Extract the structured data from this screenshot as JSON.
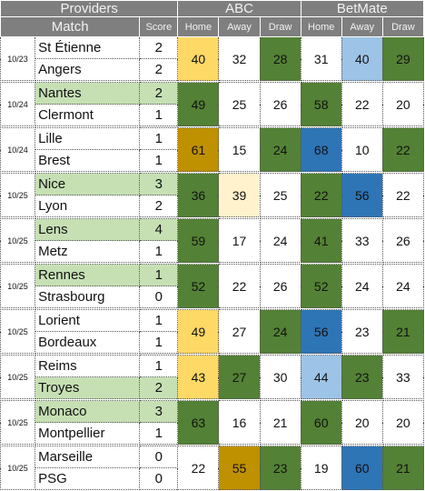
{
  "header": {
    "providers": "Providers",
    "abc": "ABC",
    "betmate": "BetMate",
    "match": "Match",
    "score": "Score",
    "home": "Home",
    "away": "Away",
    "draw": "Draw"
  },
  "colors": {
    "green": "#538135",
    "yellow": "#ffd966",
    "gold": "#bf9000",
    "cream": "#fff2cc",
    "light_blue": "#9dc3e6",
    "blue": "#2e75b6",
    "winner_highlight": "#c6e0b4"
  },
  "matches": [
    {
      "date": "10/23",
      "home": "St Étienne",
      "away": "Angers",
      "hs": "2",
      "as": "2",
      "winner": "",
      "abc": [
        "40",
        "32",
        "28"
      ],
      "bm": [
        "31",
        "40",
        "29"
      ],
      "abc_c": [
        "yellow",
        "",
        "green"
      ],
      "bm_c": [
        "",
        "lblue",
        "green"
      ]
    },
    {
      "date": "10/24",
      "home": "Nantes",
      "away": "Clermont",
      "hs": "2",
      "as": "1",
      "winner": "home",
      "abc": [
        "49",
        "25",
        "26"
      ],
      "bm": [
        "58",
        "22",
        "20"
      ],
      "abc_c": [
        "green",
        "",
        ""
      ],
      "bm_c": [
        "green",
        "",
        ""
      ]
    },
    {
      "date": "10/24",
      "home": "Lille",
      "away": "Brest",
      "hs": "1",
      "as": "1",
      "winner": "",
      "abc": [
        "61",
        "15",
        "24"
      ],
      "bm": [
        "68",
        "10",
        "22"
      ],
      "abc_c": [
        "gold",
        "",
        "green"
      ],
      "bm_c": [
        "blue",
        "",
        "green"
      ]
    },
    {
      "date": "10/25",
      "home": "Nice",
      "away": "Lyon",
      "hs": "3",
      "as": "2",
      "winner": "home",
      "abc": [
        "36",
        "39",
        "25"
      ],
      "bm": [
        "22",
        "56",
        "22"
      ],
      "abc_c": [
        "green",
        "cream",
        ""
      ],
      "bm_c": [
        "green",
        "blue",
        ""
      ]
    },
    {
      "date": "10/25",
      "home": "Lens",
      "away": "Metz",
      "hs": "4",
      "as": "1",
      "winner": "home",
      "abc": [
        "59",
        "17",
        "24"
      ],
      "bm": [
        "41",
        "33",
        "26"
      ],
      "abc_c": [
        "green",
        "",
        ""
      ],
      "bm_c": [
        "green",
        "",
        ""
      ]
    },
    {
      "date": "10/25",
      "home": "Rennes",
      "away": "Strasbourg",
      "hs": "1",
      "as": "0",
      "winner": "home",
      "abc": [
        "52",
        "22",
        "26"
      ],
      "bm": [
        "52",
        "24",
        "24"
      ],
      "abc_c": [
        "green",
        "",
        ""
      ],
      "bm_c": [
        "green",
        "",
        ""
      ]
    },
    {
      "date": "10/25",
      "home": "Lorient",
      "away": "Bordeaux",
      "hs": "1",
      "as": "1",
      "winner": "",
      "abc": [
        "49",
        "27",
        "24"
      ],
      "bm": [
        "56",
        "23",
        "21"
      ],
      "abc_c": [
        "yellow",
        "",
        "green"
      ],
      "bm_c": [
        "blue",
        "",
        "green"
      ]
    },
    {
      "date": "10/25",
      "home": "Reims",
      "away": "Troyes",
      "hs": "1",
      "as": "2",
      "winner": "away",
      "abc": [
        "43",
        "27",
        "30"
      ],
      "bm": [
        "44",
        "23",
        "33"
      ],
      "abc_c": [
        "yellow",
        "green",
        ""
      ],
      "bm_c": [
        "lblue",
        "green",
        ""
      ]
    },
    {
      "date": "10/25",
      "home": "Monaco",
      "away": "Montpellier",
      "hs": "3",
      "as": "1",
      "winner": "home",
      "abc": [
        "63",
        "16",
        "21"
      ],
      "bm": [
        "60",
        "20",
        "20"
      ],
      "abc_c": [
        "green",
        "",
        ""
      ],
      "bm_c": [
        "green",
        "",
        ""
      ]
    },
    {
      "date": "10/25",
      "home": "Marseille",
      "away": "PSG",
      "hs": "0",
      "as": "0",
      "winner": "",
      "abc": [
        "22",
        "55",
        "23"
      ],
      "bm": [
        "19",
        "60",
        "21"
      ],
      "abc_c": [
        "",
        "gold",
        "green"
      ],
      "bm_c": [
        "",
        "blue",
        "green"
      ]
    }
  ]
}
